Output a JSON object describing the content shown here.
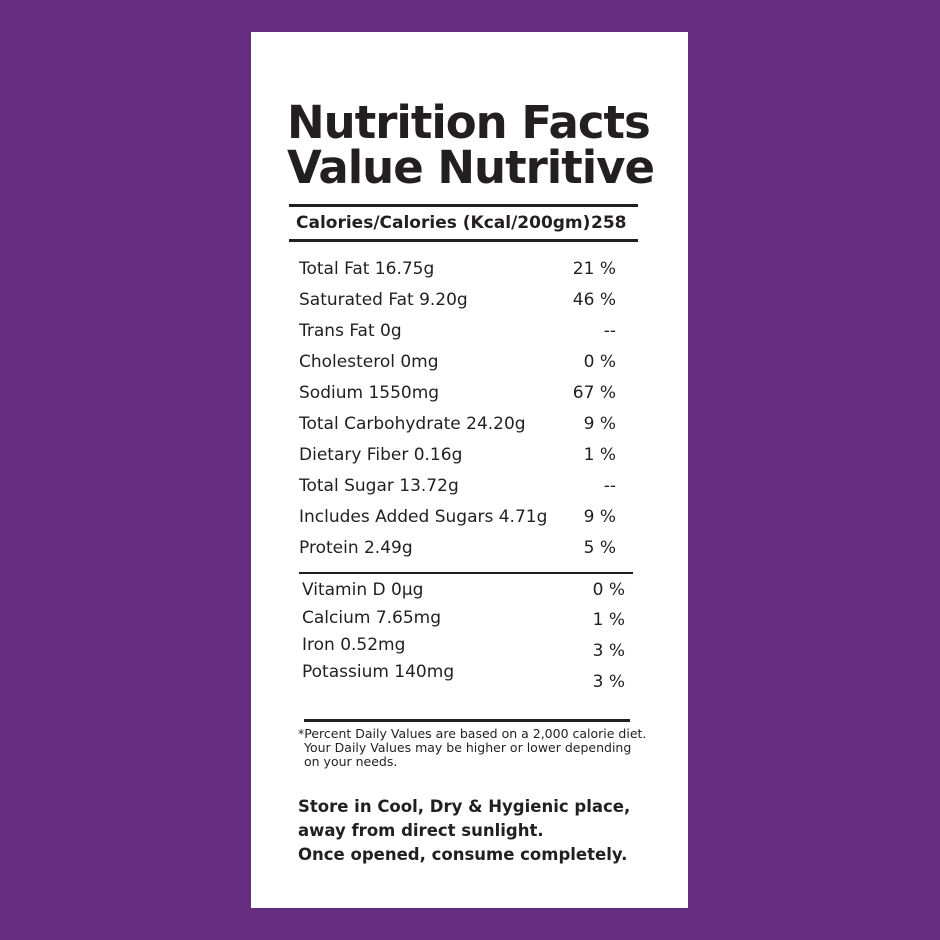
{
  "label": {
    "title": [
      "Nutrition Facts",
      "Value Nutritive"
    ],
    "calories": {
      "label": "Calories/Calories (Kcal/200gm)",
      "value": "258"
    },
    "nutrients": [
      [
        "Total Fat 16.75g",
        "21 %"
      ],
      [
        "Saturated Fat 9.20g",
        "46 %"
      ],
      [
        "Trans Fat 0g",
        "--"
      ],
      [
        "Cholesterol 0mg",
        "0 %"
      ],
      [
        "Sodium 1550mg",
        "67 %"
      ],
      [
        "Total Carbohydrate 24.20g",
        "9 %"
      ],
      [
        "Dietary Fiber 0.16g",
        "1 %"
      ],
      [
        "Total Sugar 13.72g",
        "--"
      ],
      [
        "Includes Added Sugars 4.71g",
        "9 %"
      ],
      [
        "Protein 2.49g",
        "5 %"
      ]
    ],
    "vitamins": [
      [
        "Vitamin D 0µg",
        "0 %"
      ],
      [
        "Calcium 7.65mg",
        "1 %"
      ],
      [
        "Iron 0.52mg",
        "3 %"
      ],
      [
        "Potassium 140mg",
        "3 %"
      ]
    ],
    "footnote": [
      "*Percent Daily Values are based on a 2,000 calorie diet.",
      "Your Daily Values may be higher or lower depending",
      "on your needs."
    ],
    "storage": [
      "Store in Cool, Dry & Hygienic place,",
      "away from direct sunlight.",
      "Once opened, consume completely."
    ]
  }
}
